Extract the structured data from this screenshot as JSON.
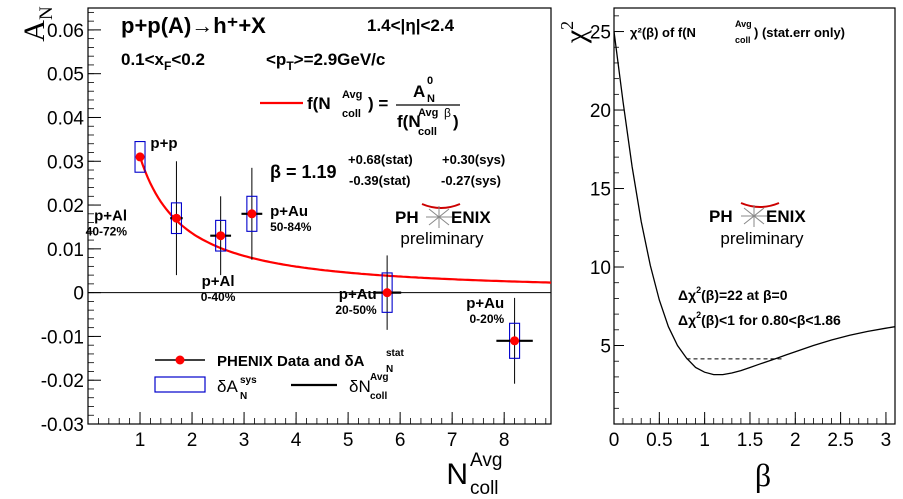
{
  "chart_data": [
    {
      "type": "scatter",
      "title": "p+p(A)→h⁺+X",
      "kinematics": [
        "1.4<|η|<2.4",
        "0.1<x",
        "F",
        "<0.2",
        "<p",
        "T",
        ">=2.9GeV/c"
      ],
      "xlabel": "N",
      "xlabel_sup": "Avg",
      "xlabel_sub": "coll",
      "ylabel": "A",
      "ylabel_sub": "N",
      "xlim": [
        0,
        8.9
      ],
      "ylim": [
        -0.03,
        0.065
      ],
      "xticks": [
        1,
        2,
        3,
        4,
        5,
        6,
        7,
        8
      ],
      "yticks": [
        -0.03,
        -0.02,
        -0.01,
        0,
        0.01,
        0.02,
        0.03,
        0.04,
        0.05,
        0.06
      ],
      "ytick_labels": [
        "-0.03",
        "-0.02",
        "-0.01",
        "0",
        "0.01",
        "0.02",
        "0.03",
        "0.04",
        "0.05",
        "0.06"
      ],
      "series": [
        {
          "name": "PHENIX Data and δA",
          "name_sup": "stat",
          "name_sub": "N",
          "color": "#ff0000",
          "points": [
            {
              "label": "p+p",
              "sublabel": "",
              "x": 1.0,
              "y": 0.031,
              "stat_err": 0.0,
              "sys_err": 0.0035,
              "ncoll_err": 0.0
            },
            {
              "label": "p+Al",
              "sublabel": "40-72%",
              "x": 1.7,
              "y": 0.017,
              "stat_err": 0.013,
              "sys_err": 0.0035,
              "ncoll_err": 0.12
            },
            {
              "label": "p+Al",
              "sublabel": "0-40%",
              "x": 2.55,
              "y": 0.013,
              "stat_err": 0.009,
              "sys_err": 0.0035,
              "ncoll_err": 0.2
            },
            {
              "label": "p+Au",
              "sublabel": "50-84%",
              "x": 3.15,
              "y": 0.018,
              "stat_err": 0.0105,
              "sys_err": 0.004,
              "ncoll_err": 0.2
            },
            {
              "label": "p+Au",
              "sublabel": "20-50%",
              "x": 5.75,
              "y": 0.0,
              "stat_err": 0.0085,
              "sys_err": 0.0045,
              "ncoll_err": 0.27
            },
            {
              "label": "p+Au",
              "sublabel": "0-20%",
              "x": 8.2,
              "y": -0.011,
              "stat_err": 0.0098,
              "sys_err": 0.004,
              "ncoll_err": 0.35
            }
          ]
        },
        {
          "name": "f(N",
          "name_sup": "Avg",
          "name_sub": "coll",
          "fit_numerator": "A",
          "fit_numerator_sup": "0",
          "fit_numerator_sub": "N",
          "fit_denominator_sup": "β",
          "color": "#ff0000",
          "A0": 0.031,
          "beta": 1.19
        }
      ],
      "legend_sys": "δA",
      "legend_sys_sup": "sys",
      "legend_sys_sub": "N",
      "legend_ncoll": "δN",
      "legend_ncoll_sup": "Avg",
      "legend_ncoll_sub": "coll",
      "fit_result": {
        "beta": "β = 1.19",
        "plus_stat": "+0.68(stat)",
        "plus_sys": "+0.30(sys)",
        "minus_stat": "-0.39(stat)",
        "minus_sys": "-0.27(sys)"
      },
      "logo": {
        "text_left": "PH",
        "text_right": "ENIX",
        "sub": "preliminary",
        "color": "#cc0000"
      }
    },
    {
      "type": "line",
      "title": "χ²(β) of f(N",
      "title_sup": "Avg",
      "title_sub": "coll",
      "title_suffix": ") (stat.err only)",
      "xlabel": "β",
      "ylabel": "χ",
      "ylabel_sup": "2",
      "xlim": [
        0,
        3.1
      ],
      "ylim": [
        0,
        26.5
      ],
      "xticks": [
        0,
        0.5,
        1,
        1.5,
        2,
        2.5,
        3
      ],
      "xtick_labels": [
        "0",
        "0.5",
        "1",
        "1.5",
        "2",
        "2.5",
        "3"
      ],
      "yticks": [
        5,
        10,
        15,
        20,
        25
      ],
      "series": [
        {
          "name": "χ²(β)",
          "color": "#000000",
          "x": [
            0.0,
            0.1,
            0.2,
            0.3,
            0.4,
            0.5,
            0.6,
            0.7,
            0.8,
            0.9,
            1.0,
            1.1,
            1.2,
            1.3,
            1.4,
            1.5,
            1.6,
            1.7,
            1.8,
            1.9,
            2.0,
            2.2,
            2.4,
            2.6,
            2.8,
            3.0,
            3.1
          ],
          "y": [
            25.0,
            20.5,
            16.4,
            12.9,
            10.1,
            7.9,
            6.2,
            5.0,
            4.2,
            3.6,
            3.3,
            3.15,
            3.15,
            3.25,
            3.4,
            3.6,
            3.8,
            4.0,
            4.2,
            4.4,
            4.6,
            5.0,
            5.35,
            5.65,
            5.9,
            6.1,
            6.2
          ]
        }
      ],
      "min_line": {
        "y": 4.15,
        "x_from": 0.8,
        "x_to": 1.86
      },
      "annotations": [
        "Δχ",
        "2",
        "(β)=22 at β=0",
        "Δχ",
        "2",
        "(β)<1 for 0.80<β<1.86"
      ],
      "logo": {
        "text_left": "PH",
        "text_right": "ENIX",
        "sub": "preliminary",
        "color": "#cc0000"
      }
    }
  ]
}
